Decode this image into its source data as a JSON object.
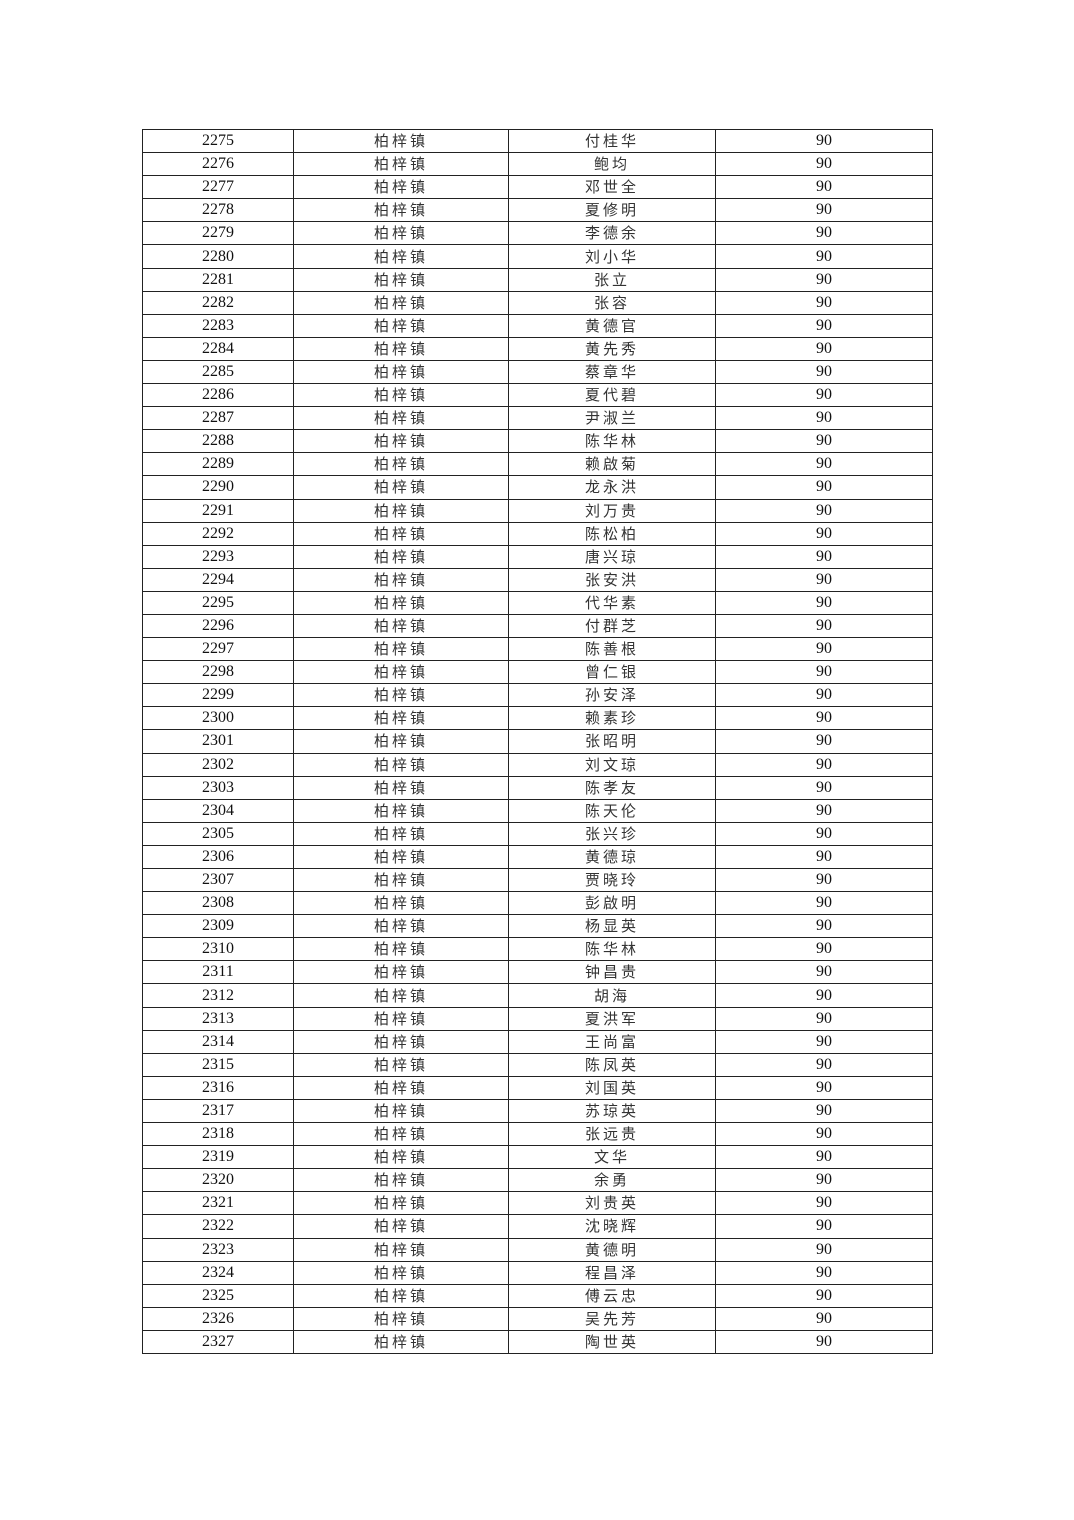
{
  "table": {
    "town": "柏梓镇",
    "amount": "90",
    "start_no": 2275,
    "names": [
      "付桂华",
      "鲍均",
      "邓世全",
      "夏修明",
      "李德余",
      "刘小华",
      "张立",
      "张容",
      "黄德官",
      "黄先秀",
      "蔡章华",
      "夏代碧",
      "尹淑兰",
      "陈华林",
      "赖啟菊",
      "龙永洪",
      "刘万贵",
      "陈松柏",
      "唐兴琼",
      "张安洪",
      "代华素",
      "付群芝",
      "陈善根",
      "曾仁银",
      "孙安泽",
      "赖素珍",
      "张昭明",
      "刘文琼",
      "陈孝友",
      "陈天伦",
      "张兴珍",
      "黄德琼",
      "贾晓玲",
      "彭啟明",
      "杨显英",
      "陈华林",
      "钟昌贵",
      "胡海",
      "夏洪军",
      "王尚富",
      "陈凤英",
      "刘国英",
      "苏琼英",
      "张远贵",
      "文华",
      "余勇",
      "刘贵英",
      "沈晓辉",
      "黄德明",
      "程昌泽",
      "傅云忠",
      "吴先芳",
      "陶世英"
    ]
  }
}
